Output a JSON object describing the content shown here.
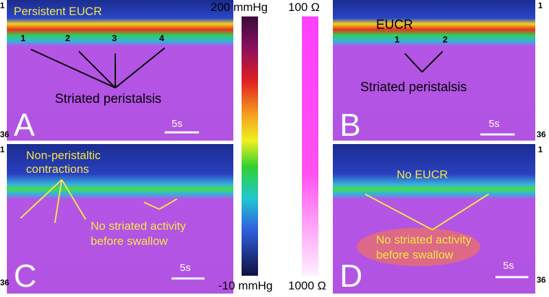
{
  "panels": [
    {
      "letter": "A",
      "title": "Persistent EUCR",
      "markers": [
        "1",
        "2",
        "3",
        "4"
      ],
      "annotation": [
        "Striated peristalsis"
      ],
      "scale": "5s",
      "top": "1",
      "bottom": "36"
    },
    {
      "letter": "B",
      "title": "EUCR",
      "markers": [
        "1",
        "2"
      ],
      "annotation": [
        "Striated peristalsis"
      ],
      "scale": "5s",
      "top": "1",
      "bottom": "36"
    },
    {
      "letter": "C",
      "title": "Non-peristaltic contractions",
      "title_lines": [
        "Non-peristaltic",
        "contractions"
      ],
      "annotation": [
        "No striated activity",
        "before swallow"
      ],
      "scale": "5s",
      "top": "1",
      "bottom": "36"
    },
    {
      "letter": "D",
      "title": "No EUCR",
      "annotation": [
        "No striated activity",
        "before swallow"
      ],
      "scale": "5s",
      "top": "1",
      "bottom": "36"
    }
  ],
  "pressure_scale": {
    "max": "200 mmHg",
    "min": "-10 mmHg"
  },
  "impedance_scale": {
    "max": "100 Ω",
    "min": "1000 Ω"
  }
}
